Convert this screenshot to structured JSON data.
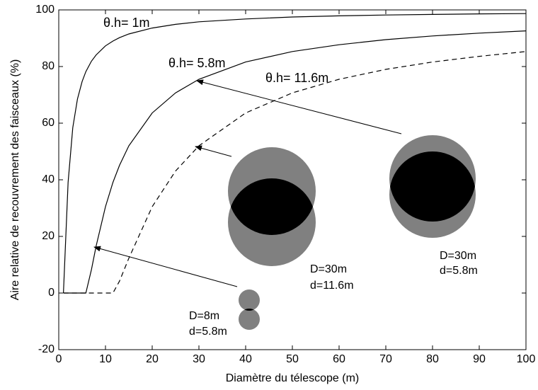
{
  "chart_data": {
    "type": "line",
    "xlabel": "Diamètre du télescope (m)",
    "ylabel": "Aire relative de recouvrement des faisceaux (%)",
    "x": [
      1,
      2,
      3,
      4,
      5,
      5.8,
      7,
      8,
      10,
      11.6,
      13,
      15,
      20,
      25,
      30,
      40,
      50,
      60,
      70,
      80,
      90,
      100
    ],
    "series": [
      {
        "name": "θ.h= 1m",
        "color": "#000000",
        "style": "solid",
        "values": [
          0,
          39.1,
          58.4,
          68.5,
          74.7,
          78.2,
          81.9,
          84.1,
          87.3,
          89.0,
          90.2,
          91.5,
          93.6,
          94.9,
          95.8,
          96.8,
          97.5,
          97.9,
          98.2,
          98.4,
          98.6,
          98.7
        ]
      },
      {
        "name": "θ.h= 5.8m",
        "color": "#000000",
        "style": "solid",
        "values": [
          0,
          0,
          0,
          0,
          0,
          0,
          8.3,
          16.6,
          30.5,
          39.1,
          45.1,
          52.0,
          63.6,
          70.7,
          75.5,
          81.6,
          85.3,
          87.7,
          89.5,
          90.8,
          91.8,
          92.6
        ]
      },
      {
        "name": "θ.h= 11.6m",
        "color": "#000000",
        "style": "dashed",
        "values": [
          0,
          0,
          0,
          0,
          0,
          0,
          0,
          0,
          0,
          0,
          4.2,
          12.3,
          30.5,
          43.1,
          52.0,
          63.6,
          70.7,
          75.5,
          79.0,
          81.6,
          83.6,
          85.3
        ]
      }
    ],
    "annotations": [
      "D=30m",
      "d=11.6m",
      "D=30m",
      "d=5.8m",
      "D=8m",
      "d=5.8m"
    ],
    "xlim": [
      0,
      100
    ],
    "xticks": [
      0,
      10,
      20,
      30,
      40,
      50,
      60,
      70,
      80,
      90,
      100
    ],
    "ylim": [
      -20,
      100
    ],
    "yticks": [
      -20,
      0,
      20,
      40,
      60,
      80,
      100
    ],
    "grid": false
  }
}
